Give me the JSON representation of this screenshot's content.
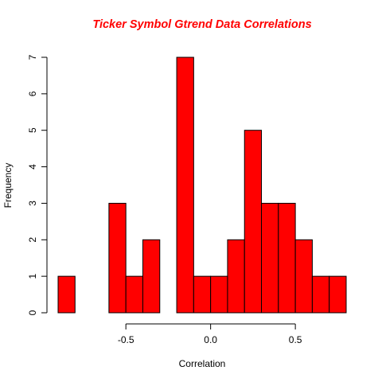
{
  "chart_data": {
    "type": "bar",
    "title": "Ticker Symbol Gtrend Data Correlations",
    "xlabel": "Correlation",
    "ylabel": "Frequency",
    "bin_width": 0.1,
    "bins": [
      {
        "x0": -0.9,
        "x1": -0.8,
        "count": 1
      },
      {
        "x0": -0.8,
        "x1": -0.7,
        "count": 0
      },
      {
        "x0": -0.7,
        "x1": -0.6,
        "count": 0
      },
      {
        "x0": -0.6,
        "x1": -0.5,
        "count": 3
      },
      {
        "x0": -0.5,
        "x1": -0.4,
        "count": 1
      },
      {
        "x0": -0.4,
        "x1": -0.3,
        "count": 2
      },
      {
        "x0": -0.3,
        "x1": -0.2,
        "count": 0
      },
      {
        "x0": -0.2,
        "x1": -0.1,
        "count": 7
      },
      {
        "x0": -0.1,
        "x1": 0.0,
        "count": 1
      },
      {
        "x0": 0.0,
        "x1": 0.1,
        "count": 1
      },
      {
        "x0": 0.1,
        "x1": 0.2,
        "count": 2
      },
      {
        "x0": 0.2,
        "x1": 0.3,
        "count": 5
      },
      {
        "x0": 0.3,
        "x1": 0.4,
        "count": 3
      },
      {
        "x0": 0.4,
        "x1": 0.5,
        "count": 3
      },
      {
        "x0": 0.5,
        "x1": 0.6,
        "count": 2
      },
      {
        "x0": 0.6,
        "x1": 0.7,
        "count": 1
      },
      {
        "x0": 0.7,
        "x1": 0.8,
        "count": 1
      }
    ],
    "xticks": [
      -0.5,
      0.0,
      0.5
    ],
    "xtick_labels": [
      "-0.5",
      "0.0",
      "0.5"
    ],
    "yticks": [
      0,
      1,
      2,
      3,
      4,
      5,
      6,
      7
    ],
    "ytick_labels": [
      "0",
      "1",
      "2",
      "3",
      "4",
      "5",
      "6",
      "7"
    ],
    "xlim": [
      -0.9,
      0.8
    ],
    "ylim": [
      0,
      7
    ],
    "bar_color": "#ff0000",
    "title_color": "#ff0000"
  }
}
